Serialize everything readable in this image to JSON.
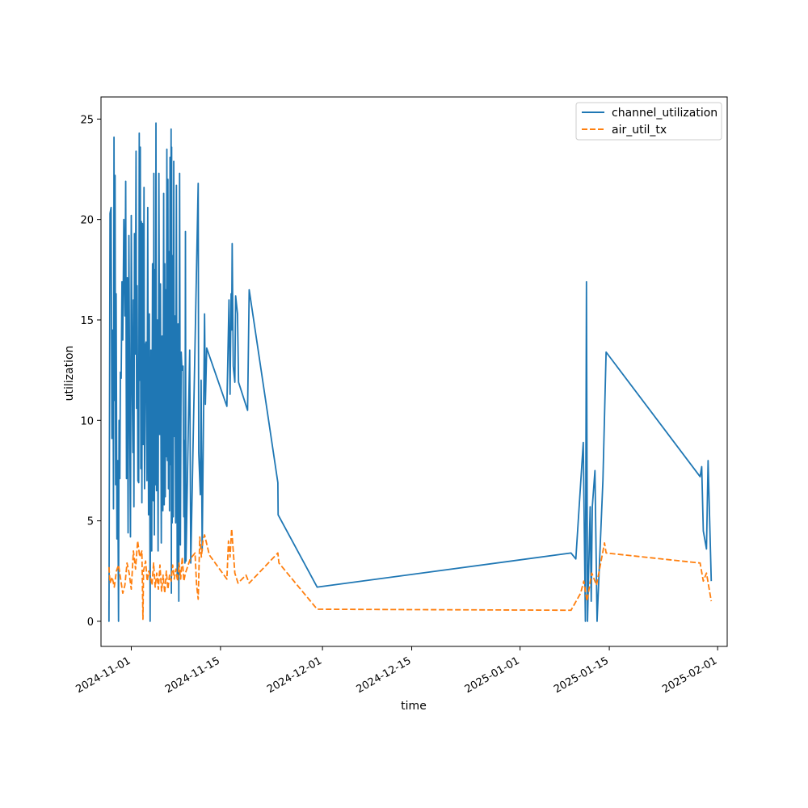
{
  "chart_data": {
    "type": "line",
    "title": "",
    "xlabel": "time",
    "ylabel": "utilization",
    "xlim": [
      "2024-10-27T06:00",
      "2025-02-02T12:00"
    ],
    "ylim": [
      -1.25,
      26.1
    ],
    "x_ticks": [
      "2024-11-01",
      "2024-11-15",
      "2024-12-01",
      "2024-12-15",
      "2025-01-01",
      "2025-01-15",
      "2025-02-01"
    ],
    "y_ticks": [
      0,
      5,
      10,
      15,
      20,
      25
    ],
    "legend_position": "top-right",
    "grid": false,
    "series": [
      {
        "name": "channel_utilization",
        "color": "#1f77b4",
        "style": "solid",
        "points": [
          [
            "2024-10-28T12:00",
            1.0
          ],
          [
            "2024-10-28T12:00",
            0.0
          ],
          [
            "2024-10-28T16:00",
            20.3
          ],
          [
            "2024-10-28T20:00",
            20.6
          ],
          [
            "2024-10-28T23:00",
            9.1
          ],
          [
            "2024-10-29T03:00",
            14.5
          ],
          [
            "2024-10-29T05:00",
            5.6
          ],
          [
            "2024-10-29T07:00",
            24.1
          ],
          [
            "2024-10-29T09:00",
            11.0
          ],
          [
            "2024-10-29T11:00",
            22.2
          ],
          [
            "2024-10-29T13:00",
            6.8
          ],
          [
            "2024-10-29T15:00",
            16.3
          ],
          [
            "2024-10-29T18:00",
            4.1
          ],
          [
            "2024-10-29T21:00",
            8.0
          ],
          [
            "2024-10-30T00:00",
            0.0
          ],
          [
            "2024-10-30T02:00",
            10.0
          ],
          [
            "2024-10-30T05:00",
            7.1
          ],
          [
            "2024-10-30T07:00",
            12.4
          ],
          [
            "2024-10-30T10:00",
            12.1
          ],
          [
            "2024-10-30T13:00",
            16.9
          ],
          [
            "2024-10-30T16:00",
            14.0
          ],
          [
            "2024-10-30T20:00",
            20.0
          ],
          [
            "2024-10-31T00:00",
            15.2
          ],
          [
            "2024-10-31T03:00",
            21.9
          ],
          [
            "2024-10-31T06:00",
            7.1
          ],
          [
            "2024-10-31T09:00",
            17.1
          ],
          [
            "2024-10-31T12:00",
            4.4
          ],
          [
            "2024-10-31T15:00",
            19.2
          ],
          [
            "2024-10-31T18:00",
            10.5
          ],
          [
            "2024-10-31T21:00",
            4.2
          ],
          [
            "2024-11-01T00:00",
            20.2
          ],
          [
            "2024-11-01T03:00",
            12.4
          ],
          [
            "2024-11-01T06:00",
            8.4
          ],
          [
            "2024-11-01T08:00",
            16.0
          ],
          [
            "2024-11-01T10:00",
            5.7
          ],
          [
            "2024-11-01T12:00",
            19.3
          ],
          [
            "2024-11-01T15:00",
            13.3
          ],
          [
            "2024-11-01T18:00",
            23.4
          ],
          [
            "2024-11-01T20:00",
            10.6
          ],
          [
            "2024-11-01T22:00",
            16.7
          ],
          [
            "2024-11-02T01:00",
            7.0
          ],
          [
            "2024-11-02T04:00",
            6.9
          ],
          [
            "2024-11-02T06:00",
            24.3
          ],
          [
            "2024-11-02T08:00",
            12.0
          ],
          [
            "2024-11-02T10:00",
            23.6
          ],
          [
            "2024-11-02T12:00",
            7.6
          ],
          [
            "2024-11-02T14:00",
            19.9
          ],
          [
            "2024-11-02T16:00",
            5.9
          ],
          [
            "2024-11-02T18:00",
            19.8
          ],
          [
            "2024-11-02T21:00",
            8.8
          ],
          [
            "2024-11-03T00:00",
            21.6
          ],
          [
            "2024-11-03T02:00",
            6.6
          ],
          [
            "2024-11-03T05:00",
            13.7
          ],
          [
            "2024-11-03T08:00",
            13.9
          ],
          [
            "2024-11-03T11:00",
            7.0
          ],
          [
            "2024-11-03T14:00",
            20.6
          ],
          [
            "2024-11-03T17:00",
            5.3
          ],
          [
            "2024-11-03T20:00",
            15.3
          ],
          [
            "2024-11-03T23:00",
            0.0
          ],
          [
            "2024-11-04T02:00",
            13.5
          ],
          [
            "2024-11-04T05:00",
            3.5
          ],
          [
            "2024-11-04T08:00",
            17.8
          ],
          [
            "2024-11-04T11:00",
            6.0
          ],
          [
            "2024-11-04T13:00",
            22.3
          ],
          [
            "2024-11-04T15:00",
            4.3
          ],
          [
            "2024-11-04T17:00",
            17.5
          ],
          [
            "2024-11-04T19:00",
            6.8
          ],
          [
            "2024-11-04T21:00",
            24.8
          ],
          [
            "2024-11-04T23:00",
            6.5
          ],
          [
            "2024-11-05T02:00",
            15.0
          ],
          [
            "2024-11-05T05:00",
            3.5
          ],
          [
            "2024-11-05T08:00",
            22.3
          ],
          [
            "2024-11-05T11:00",
            9.3
          ],
          [
            "2024-11-05T14:00",
            16.8
          ],
          [
            "2024-11-05T17:00",
            3.9
          ],
          [
            "2024-11-05T20:00",
            14.2
          ],
          [
            "2024-11-05T23:00",
            5.5
          ],
          [
            "2024-11-06T02:00",
            21.3
          ],
          [
            "2024-11-06T04:00",
            5.8
          ],
          [
            "2024-11-06T06:00",
            17.8
          ],
          [
            "2024-11-06T08:00",
            6.2
          ],
          [
            "2024-11-06T10:00",
            16.5
          ],
          [
            "2024-11-06T12:00",
            8.2
          ],
          [
            "2024-11-06T14:00",
            23.5
          ],
          [
            "2024-11-06T16:00",
            8.0
          ],
          [
            "2024-11-06T18:00",
            22.0
          ],
          [
            "2024-11-06T20:00",
            6.6
          ],
          [
            "2024-11-06T22:00",
            18.4
          ],
          [
            "2024-11-07T00:00",
            5.5
          ],
          [
            "2024-11-07T02:00",
            23.1
          ],
          [
            "2024-11-07T04:00",
            7.8
          ],
          [
            "2024-11-07T06:00",
            24.5
          ],
          [
            "2024-11-07T07:00",
            1.4
          ],
          [
            "2024-11-07T08:00",
            23.6
          ],
          [
            "2024-11-07T10:00",
            4.9
          ],
          [
            "2024-11-07T12:00",
            18.2
          ],
          [
            "2024-11-07T14:00",
            5.2
          ],
          [
            "2024-11-07T16:00",
            22.9
          ],
          [
            "2024-11-07T18:00",
            9.2
          ],
          [
            "2024-11-07T20:00",
            15.2
          ],
          [
            "2024-11-07T23:00",
            4.9
          ],
          [
            "2024-11-08T02:00",
            21.7
          ],
          [
            "2024-11-08T05:00",
            2.3
          ],
          [
            "2024-11-08T08:00",
            14.8
          ],
          [
            "2024-11-08T11:00",
            1.0
          ],
          [
            "2024-11-08T14:00",
            22.3
          ],
          [
            "2024-11-08T17:00",
            3.8
          ],
          [
            "2024-11-08T20:00",
            13.4
          ],
          [
            "2024-11-08T23:00",
            12.5
          ],
          [
            "2024-11-09T03:00",
            12.7
          ],
          [
            "2024-11-09T06:00",
            5.2
          ],
          [
            "2024-11-09T08:00",
            9.0
          ],
          [
            "2024-11-09T10:00",
            2.9
          ],
          [
            "2024-11-09T12:00",
            19.4
          ],
          [
            "2024-11-09T14:00",
            3.0
          ],
          [
            "2024-11-10T04:00",
            13.5
          ],
          [
            "2024-11-10T08:00",
            2.9
          ],
          [
            "2024-11-11T12:00",
            21.8
          ],
          [
            "2024-11-11T14:00",
            8.4
          ],
          [
            "2024-11-11T20:00",
            6.3
          ],
          [
            "2024-11-11T23:00",
            12.0
          ],
          [
            "2024-11-12T03:00",
            3.5
          ],
          [
            "2024-11-12T12:00",
            15.3
          ],
          [
            "2024-11-12T15:00",
            10.8
          ],
          [
            "2024-11-12T20:00",
            13.6
          ],
          [
            "2024-11-16T00:00",
            10.7
          ],
          [
            "2024-11-16T08:00",
            16.0
          ],
          [
            "2024-11-16T12:00",
            11.3
          ],
          [
            "2024-11-16T16:00",
            16.3
          ],
          [
            "2024-11-16T18:00",
            14.5
          ],
          [
            "2024-11-16T20:00",
            18.8
          ],
          [
            "2024-11-17T00:00",
            12.7
          ],
          [
            "2024-11-17T06:00",
            11.9
          ],
          [
            "2024-11-17T09:00",
            16.2
          ],
          [
            "2024-11-17T16:00",
            15.3
          ],
          [
            "2024-11-17T20:00",
            11.9
          ],
          [
            "2024-11-19T06:00",
            10.5
          ],
          [
            "2024-11-19T12:00",
            16.5
          ],
          [
            "2024-11-24T00:00",
            6.9
          ],
          [
            "2024-11-24T01:00",
            5.3
          ],
          [
            "2024-11-30T04:00",
            1.7
          ],
          [
            "2025-01-09T00:00",
            3.4
          ],
          [
            "2025-01-09T18:00",
            3.1
          ],
          [
            "2025-01-10T22:00",
            8.9
          ],
          [
            "2025-01-11T06:00",
            0.0
          ],
          [
            "2025-01-11T10:00",
            16.9
          ],
          [
            "2025-01-11T14:00",
            0.0
          ],
          [
            "2025-01-12T00:00",
            5.7
          ],
          [
            "2025-01-12T04:00",
            1.0
          ],
          [
            "2025-01-12T08:00",
            5.7
          ],
          [
            "2025-01-12T18:00",
            7.5
          ],
          [
            "2025-01-13T02:00",
            0.0
          ],
          [
            "2025-01-14T00:00",
            7.0
          ],
          [
            "2025-01-14T12:00",
            13.4
          ],
          [
            "2025-01-29T06:00",
            7.2
          ],
          [
            "2025-01-29T12:00",
            7.7
          ],
          [
            "2025-01-29T18:00",
            4.5
          ],
          [
            "2025-01-30T06:00",
            3.6
          ],
          [
            "2025-01-30T12:00",
            8.0
          ],
          [
            "2025-01-31T00:00",
            2.0
          ]
        ]
      },
      {
        "name": "air_util_tx",
        "color": "#ff7f0e",
        "style": "dashed",
        "points": [
          [
            "2024-10-28T12:00",
            2.7
          ],
          [
            "2024-10-28T16:00",
            1.9
          ],
          [
            "2024-10-29T00:00",
            2.2
          ],
          [
            "2024-10-29T08:00",
            1.7
          ],
          [
            "2024-10-29T16:00",
            2.5
          ],
          [
            "2024-10-30T00:00",
            2.8
          ],
          [
            "2024-10-30T08:00",
            2.1
          ],
          [
            "2024-10-30T16:00",
            1.4
          ],
          [
            "2024-10-31T00:00",
            1.8
          ],
          [
            "2024-10-31T08:00",
            2.9
          ],
          [
            "2024-10-31T16:00",
            2.4
          ],
          [
            "2024-11-01T00:00",
            1.6
          ],
          [
            "2024-11-01T08:00",
            3.5
          ],
          [
            "2024-11-01T16:00",
            2.6
          ],
          [
            "2024-11-02T00:00",
            4.0
          ],
          [
            "2024-11-02T08:00",
            3.2
          ],
          [
            "2024-11-02T16:00",
            3.5
          ],
          [
            "2024-11-02T20:00",
            0.1
          ],
          [
            "2024-11-02T22:00",
            2.5
          ],
          [
            "2024-11-03T06:00",
            3.0
          ],
          [
            "2024-11-03T12:00",
            2.0
          ],
          [
            "2024-11-03T18:00",
            2.5
          ],
          [
            "2024-11-04T00:00",
            2.2
          ],
          [
            "2024-11-04T06:00",
            1.8
          ],
          [
            "2024-11-04T12:00",
            2.9
          ],
          [
            "2024-11-04T18:00",
            1.7
          ],
          [
            "2024-11-05T00:00",
            2.4
          ],
          [
            "2024-11-05T06:00",
            1.6
          ],
          [
            "2024-11-05T12:00",
            2.8
          ],
          [
            "2024-11-05T18:00",
            1.5
          ],
          [
            "2024-11-06T00:00",
            2.3
          ],
          [
            "2024-11-06T06:00",
            1.4
          ],
          [
            "2024-11-06T12:00",
            2.5
          ],
          [
            "2024-11-06T18:00",
            1.6
          ],
          [
            "2024-11-07T00:00",
            2.3
          ],
          [
            "2024-11-07T06:00",
            2.0
          ],
          [
            "2024-11-07T12:00",
            2.8
          ],
          [
            "2024-11-07T18:00",
            2.1
          ],
          [
            "2024-11-08T00:00",
            2.6
          ],
          [
            "2024-11-08T06:00",
            2.0
          ],
          [
            "2024-11-08T12:00",
            2.9
          ],
          [
            "2024-11-08T18:00",
            2.1
          ],
          [
            "2024-11-09T00:00",
            3.2
          ],
          [
            "2024-11-09T06:00",
            2.0
          ],
          [
            "2024-11-09T12:00",
            2.4
          ],
          [
            "2024-11-10T06:00",
            3.1
          ],
          [
            "2024-11-11T00:00",
            3.4
          ],
          [
            "2024-11-11T06:00",
            1.8
          ],
          [
            "2024-11-11T12:00",
            1.1
          ],
          [
            "2024-11-11T18:00",
            4.2
          ],
          [
            "2024-11-12T00:00",
            3.2
          ],
          [
            "2024-11-12T06:00",
            4.0
          ],
          [
            "2024-11-12T12:00",
            4.3
          ],
          [
            "2024-11-13T06:00",
            3.3
          ],
          [
            "2024-11-16T00:00",
            2.1
          ],
          [
            "2024-11-16T06:00",
            4.0
          ],
          [
            "2024-11-16T12:00",
            3.2
          ],
          [
            "2024-11-16T18:00",
            4.6
          ],
          [
            "2024-11-17T06:00",
            2.4
          ],
          [
            "2024-11-17T18:00",
            1.9
          ],
          [
            "2024-11-19T00:00",
            2.3
          ],
          [
            "2024-11-19T12:00",
            1.9
          ],
          [
            "2024-11-24T00:00",
            3.4
          ],
          [
            "2024-11-24T04:00",
            2.9
          ],
          [
            "2024-11-30T04:00",
            0.6
          ],
          [
            "2025-01-09T00:00",
            0.55
          ],
          [
            "2025-01-10T12:00",
            1.4
          ],
          [
            "2025-01-11T00:00",
            2.0
          ],
          [
            "2025-01-11T12:00",
            1.0
          ],
          [
            "2025-01-12T06:00",
            2.4
          ],
          [
            "2025-01-13T00:00",
            1.8
          ],
          [
            "2025-01-14T06:00",
            3.9
          ],
          [
            "2025-01-14T12:00",
            3.4
          ],
          [
            "2025-01-29T06:00",
            2.9
          ],
          [
            "2025-01-29T18:00",
            2.0
          ],
          [
            "2025-01-30T06:00",
            2.4
          ],
          [
            "2025-01-31T00:00",
            1.0
          ]
        ]
      }
    ]
  }
}
